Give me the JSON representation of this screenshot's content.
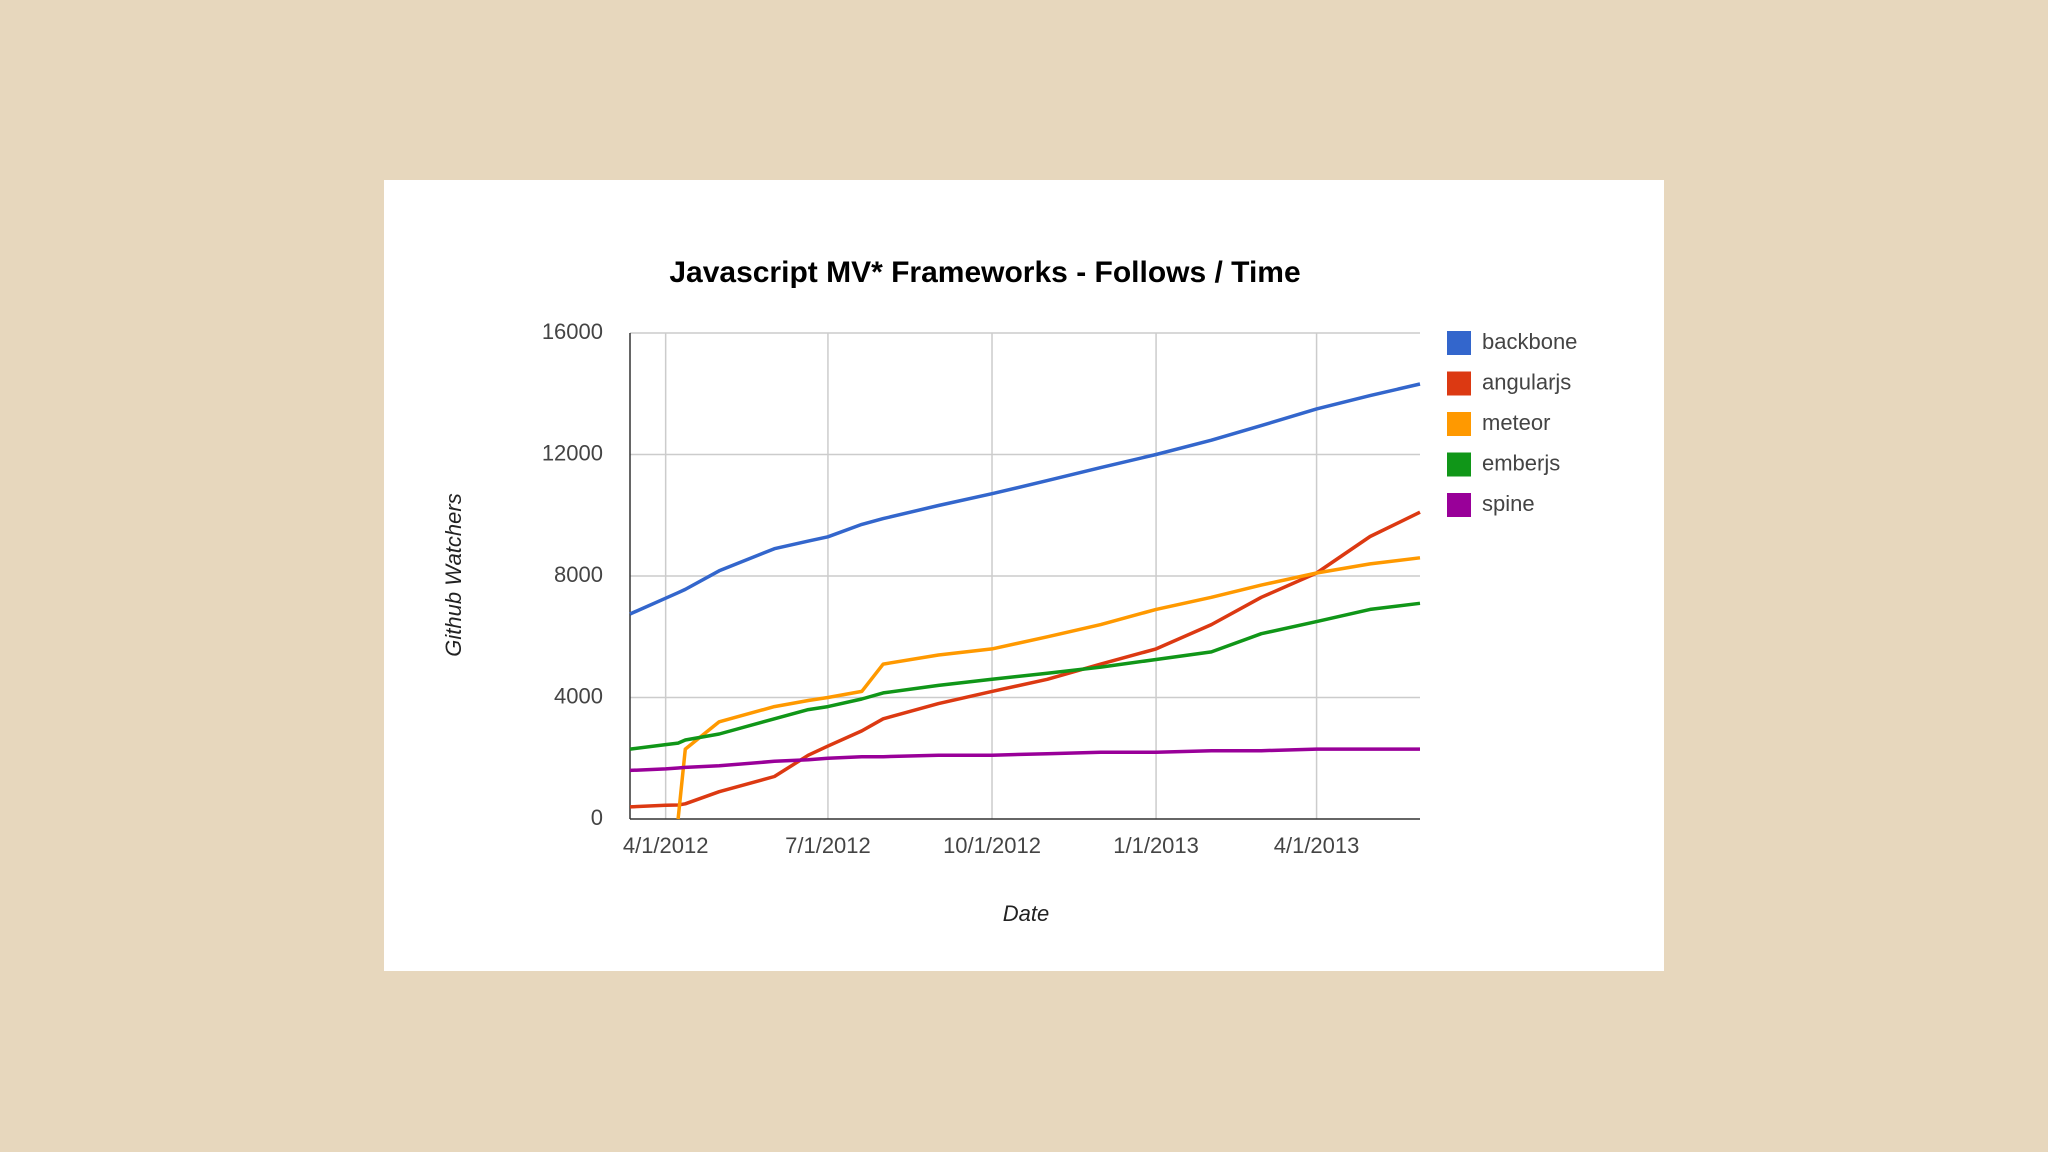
{
  "chart_data": {
    "type": "line",
    "title": "Javascript MV* Frameworks - Follows / Time",
    "x_label": "Date",
    "y_label": "Github Watchers",
    "x": [
      "2012-03-12",
      "2012-04-01",
      "2012-04-08",
      "2012-04-12",
      "2012-05-01",
      "2012-06-01",
      "2012-06-20",
      "2012-07-01",
      "2012-07-20",
      "2012-08-01",
      "2012-09-01",
      "2012-10-01",
      "2012-11-01",
      "2012-12-01",
      "2013-01-01",
      "2013-02-01",
      "2013-03-01",
      "2013-04-01",
      "2013-05-01",
      "2013-05-29"
    ],
    "series": [
      {
        "name": "backbone",
        "color": "#3366cc",
        "values": [
          6750,
          7270,
          7450,
          7560,
          8170,
          8900,
          9150,
          9290,
          9700,
          9890,
          10320,
          10710,
          11140,
          11570,
          12000,
          12470,
          12950,
          13500,
          13940,
          14320
        ]
      },
      {
        "name": "angularjs",
        "color": "#dc3912",
        "values": [
          400,
          450,
          460,
          500,
          900,
          1400,
          2100,
          2400,
          2900,
          3300,
          3800,
          4200,
          4600,
          5100,
          5600,
          6400,
          7300,
          8100,
          9300,
          10100
        ]
      },
      {
        "name": "meteor",
        "color": "#ff9900",
        "values": [
          null,
          null,
          0,
          2300,
          3200,
          3700,
          3900,
          4000,
          4200,
          5100,
          5400,
          5600,
          6000,
          6400,
          6900,
          7300,
          7700,
          8100,
          8400,
          8600
        ]
      },
      {
        "name": "emberjs",
        "color": "#109618",
        "values": [
          2300,
          2450,
          2500,
          2600,
          2800,
          3300,
          3600,
          3700,
          3950,
          4150,
          4400,
          4600,
          4800,
          5000,
          5250,
          5500,
          6100,
          6500,
          6900,
          7100
        ]
      },
      {
        "name": "spine",
        "color": "#990099",
        "values": [
          1600,
          1650,
          1680,
          1700,
          1750,
          1900,
          1950,
          2000,
          2050,
          2050,
          2100,
          2100,
          2150,
          2200,
          2200,
          2250,
          2250,
          2300,
          2300,
          2300
        ]
      }
    ],
    "xlim": [
      "2012-03-12",
      "2013-05-29"
    ],
    "xticks": [
      {
        "value": "2012-04-01",
        "label": "4/1/2012"
      },
      {
        "value": "2012-07-01",
        "label": "7/1/2012"
      },
      {
        "value": "2012-10-01",
        "label": "10/1/2012"
      },
      {
        "value": "2013-01-01",
        "label": "1/1/2013"
      },
      {
        "value": "2013-04-01",
        "label": "4/1/2013"
      }
    ],
    "ylim": [
      0,
      16000
    ],
    "yticks": [
      0,
      4000,
      8000,
      12000,
      16000
    ],
    "grid": true,
    "legend": "right"
  }
}
